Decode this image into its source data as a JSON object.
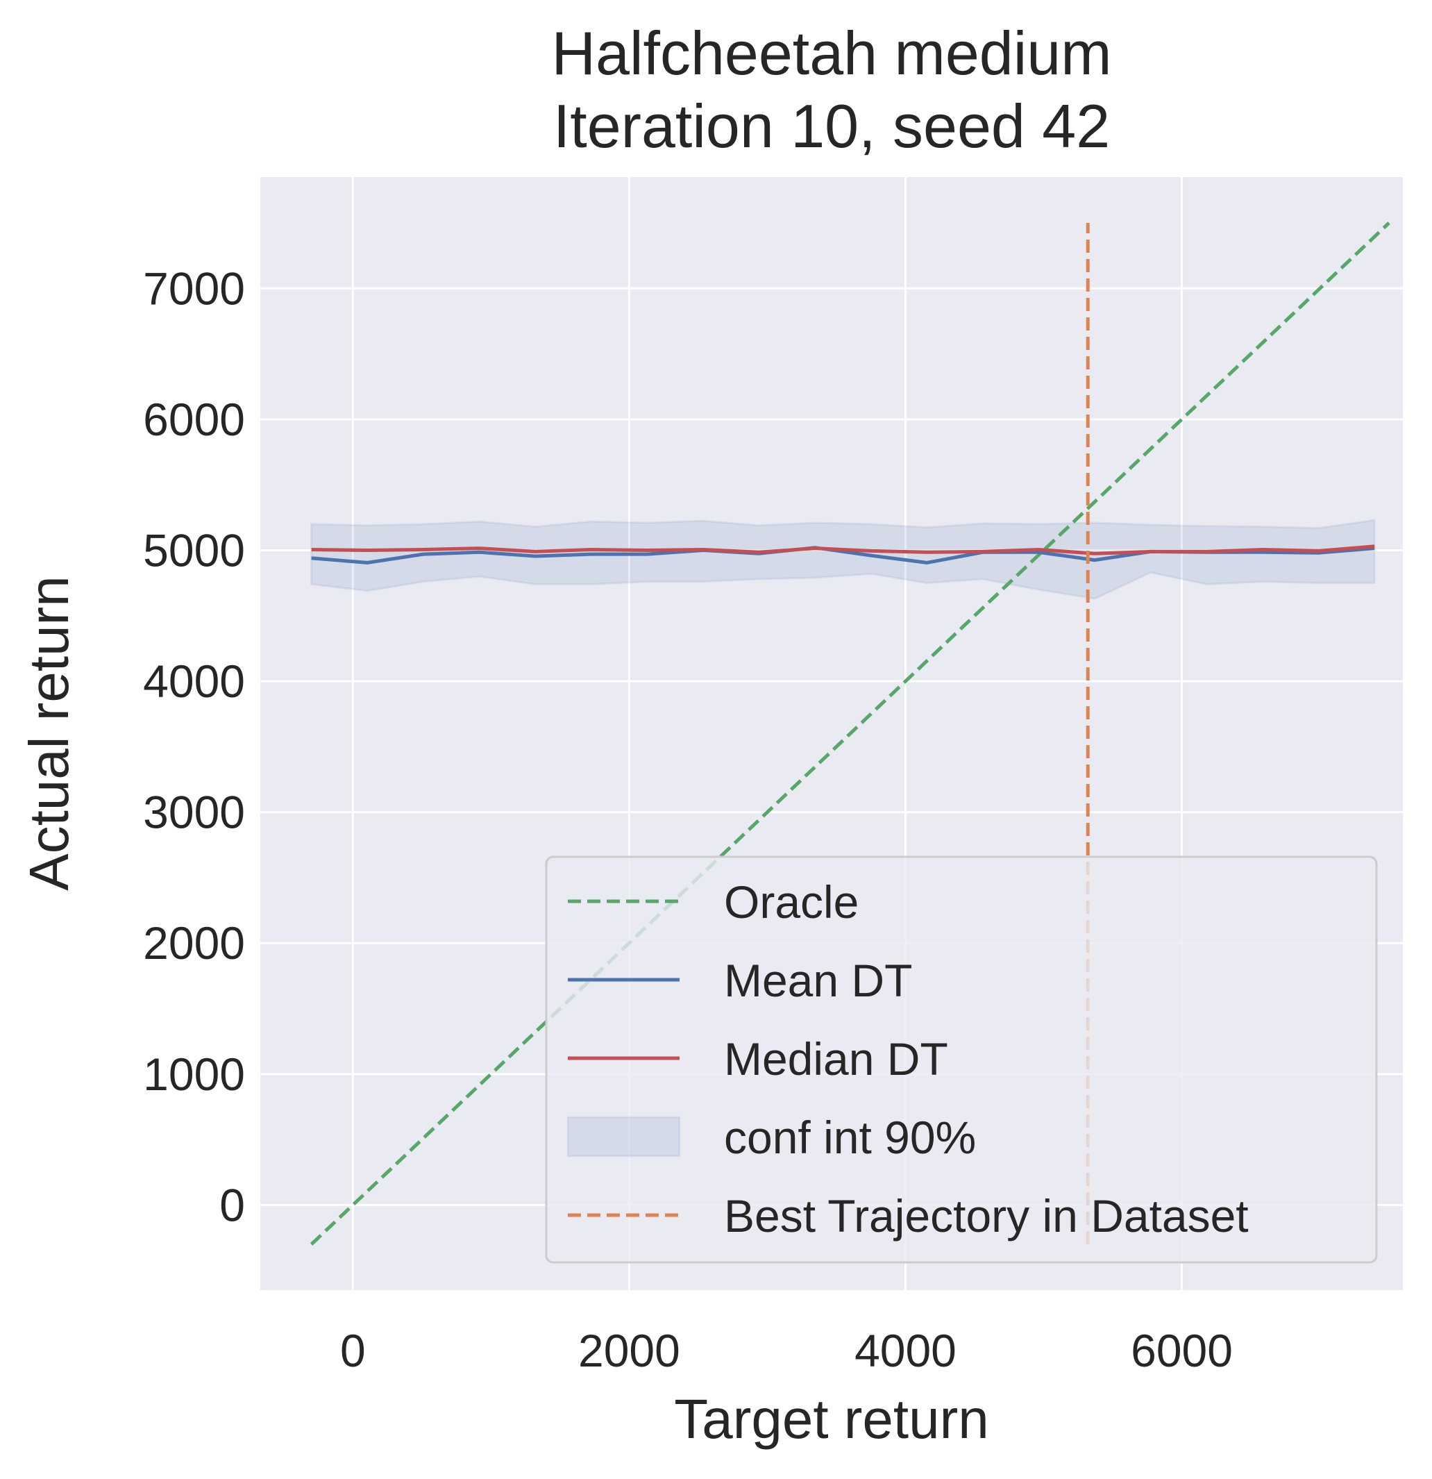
{
  "chart_data": {
    "type": "line",
    "title_lines": [
      "Halfcheetah medium",
      "Iteration 10, seed 42"
    ],
    "xlabel": "Target return",
    "ylabel": "Actual return",
    "xlim": [
      -670,
      7600
    ],
    "ylim": [
      -650,
      7850
    ],
    "xticks": [
      0,
      2000,
      4000,
      6000
    ],
    "xtick_labels": [
      "0",
      "2000",
      "4000",
      "6000"
    ],
    "yticks": [
      0,
      1000,
      2000,
      3000,
      4000,
      5000,
      6000,
      7000
    ],
    "ytick_labels": [
      "0",
      "1000",
      "2000",
      "3000",
      "4000",
      "5000",
      "6000",
      "7000"
    ],
    "grid": true,
    "legend_position": "lower-right",
    "background_color": "#eaeaf2",
    "grid_color": "#ffffff",
    "x": [
      -300,
      105,
      510,
      915,
      1320,
      1725,
      2130,
      2535,
      2940,
      3345,
      3750,
      4155,
      4560,
      4965,
      5370,
      5775,
      6180,
      6585,
      6990,
      7395
    ],
    "series": [
      {
        "name": "Oracle",
        "kind": "line",
        "dash": true,
        "color": "#55a868",
        "x": [
          -300,
          7500
        ],
        "values": [
          -300,
          7500
        ]
      },
      {
        "name": "Mean DT",
        "kind": "line",
        "dash": false,
        "color": "#4c72b0",
        "values": [
          4940,
          4905,
          4970,
          4985,
          4955,
          4970,
          4970,
          5000,
          4975,
          5020,
          4960,
          4905,
          4985,
          4985,
          4925,
          4990,
          4985,
          4985,
          4980,
          5015
        ]
      },
      {
        "name": "Median DT",
        "kind": "line",
        "dash": false,
        "color": "#c44e52",
        "values": [
          5005,
          5000,
          5005,
          5015,
          4990,
          5005,
          5000,
          5005,
          4985,
          5015,
          4995,
          4985,
          4990,
          5005,
          4975,
          4990,
          4990,
          5005,
          4995,
          5030
        ]
      },
      {
        "name": "conf int 90%",
        "kind": "band",
        "color": "#4c72b0",
        "opacity": 0.13,
        "upper": [
          5200,
          5190,
          5200,
          5220,
          5180,
          5220,
          5210,
          5225,
          5190,
          5210,
          5200,
          5175,
          5205,
          5200,
          5210,
          5195,
          5185,
          5180,
          5170,
          5230
        ],
        "lower": [
          4740,
          4690,
          4760,
          4800,
          4740,
          4740,
          4760,
          4760,
          4780,
          4790,
          4820,
          4750,
          4780,
          4700,
          4630,
          4830,
          4740,
          4760,
          4750,
          4750
        ]
      },
      {
        "name": "Best Trajectory in Dataset",
        "kind": "vline",
        "dash": true,
        "color": "#dd8452",
        "x_value": 5320,
        "y_range": [
          -300,
          7500
        ]
      }
    ]
  }
}
